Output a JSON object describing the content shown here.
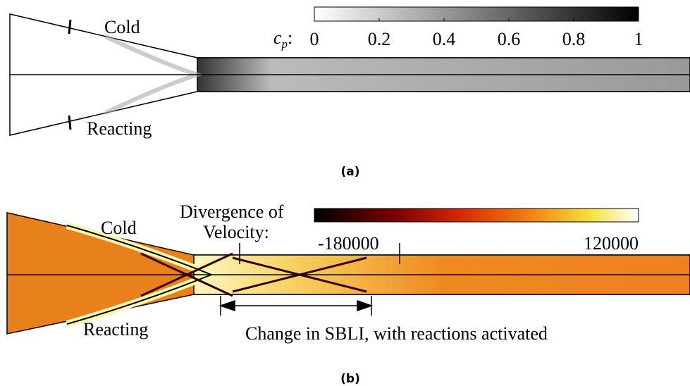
{
  "panels": [
    {
      "label": "(a)",
      "top_label": "Cold",
      "bottom_label": "Reacting",
      "colorbar": {
        "title": "c",
        "title_sub": "p",
        "title_suffix": ":",
        "range": [
          0,
          1
        ],
        "ticks": [
          0,
          0.2,
          0.4,
          0.6,
          0.8,
          1
        ]
      }
    },
    {
      "label": "(b)",
      "top_label": "Cold",
      "bottom_label": "Reacting",
      "colorbar": {
        "title_lines": [
          "Divergence of",
          "Velocity:"
        ],
        "range": [
          -180000,
          120000
        ],
        "ticks": [
          -180000,
          120000
        ]
      },
      "annotation": "Change in SBLI, with reactions activated"
    }
  ]
}
